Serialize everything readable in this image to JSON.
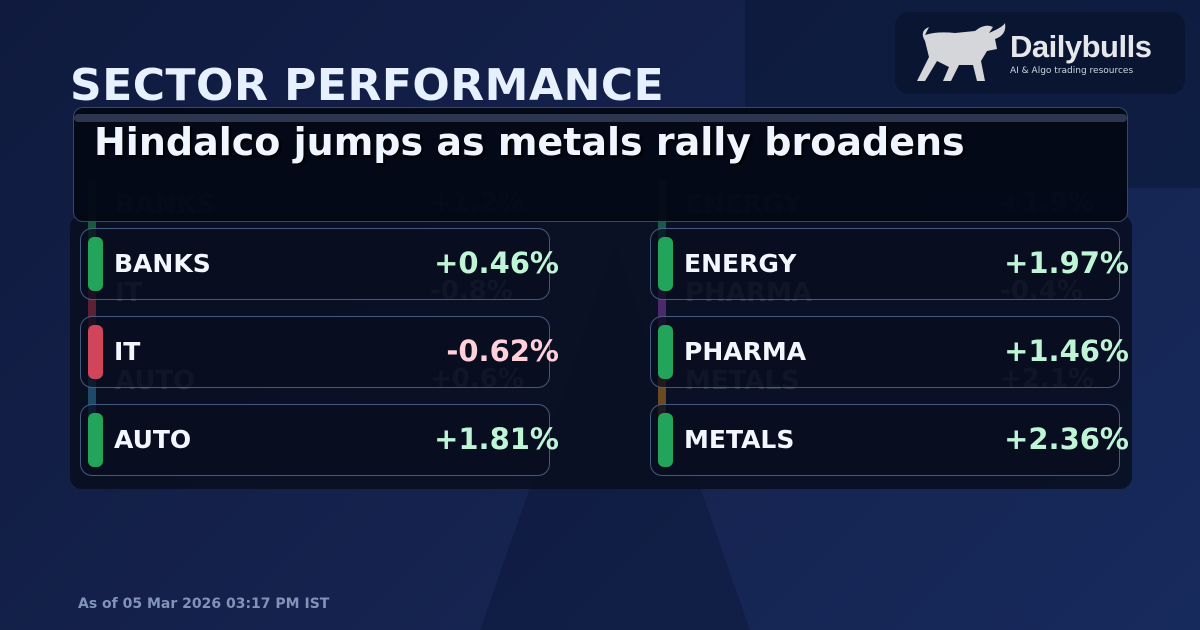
{
  "title": "SECTOR PERFORMANCE",
  "headline": "Hindalco jumps as metals rally broadens",
  "brand": {
    "name": "Dailybulls",
    "tagline": "AI & Algo trading resources"
  },
  "ghost_rows": [
    {
      "name": "BANKS",
      "value": "+1.2%"
    },
    {
      "name": "IT",
      "value": "-0.8%"
    },
    {
      "name": "AUTO",
      "value": "+0.6%"
    },
    {
      "name": "ENERGY",
      "value": "+1.9%"
    },
    {
      "name": "PHARMA",
      "value": "-0.4%"
    },
    {
      "name": "METALS",
      "value": "+2.1%"
    }
  ],
  "sectors": [
    {
      "name": "BANKS",
      "value": "+0.46%"
    },
    {
      "name": "IT",
      "value": "-0.62%"
    },
    {
      "name": "AUTO",
      "value": "+1.81%"
    },
    {
      "name": "ENERGY",
      "value": "+1.97%"
    },
    {
      "name": "PHARMA",
      "value": "+1.46%"
    },
    {
      "name": "METALS",
      "value": "+2.36%"
    }
  ],
  "colors": {
    "positive": "#22a55a",
    "negative": "#d0455a",
    "positive_text": "#bff5d6",
    "negative_text": "#ffd0da"
  },
  "as_of": "As of 05 Mar 2026 03:17 PM IST"
}
